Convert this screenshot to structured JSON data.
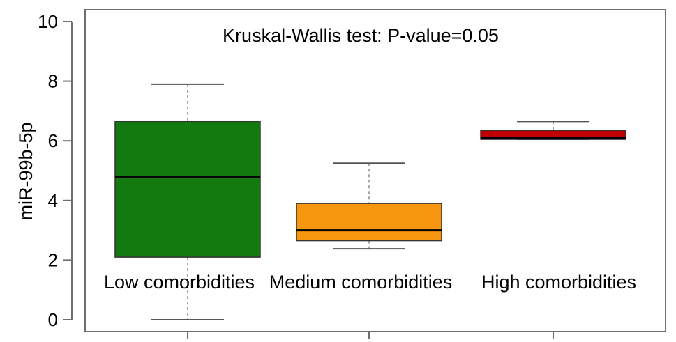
{
  "chart_data": {
    "type": "boxplot",
    "title": "",
    "annotation": "Kruskal-Wallis test: P-value=0.05",
    "xlabel": "",
    "ylabel": "miR-99b-5p",
    "ylim": [
      0,
      10
    ],
    "yticks": [
      "0",
      "2",
      "4",
      "6",
      "8",
      "10"
    ],
    "grid": false,
    "categories": [
      "Low comorbidities",
      "Medium comorbidities",
      "High comorbidities"
    ],
    "boxes": [
      {
        "category": "Low comorbidities",
        "min": 0.0,
        "q1": 2.1,
        "median": 4.8,
        "q3": 6.65,
        "max": 7.9,
        "color": "#137a0f"
      },
      {
        "category": "Medium comorbidities",
        "min": 2.38,
        "q1": 2.65,
        "median": 3.0,
        "q3": 3.9,
        "max": 5.25,
        "color": "#f7960f"
      },
      {
        "category": "High comorbidities",
        "min": 6.05,
        "q1": 6.05,
        "median": 6.1,
        "q3": 6.35,
        "max": 6.65,
        "color": "#c00000"
      }
    ]
  }
}
